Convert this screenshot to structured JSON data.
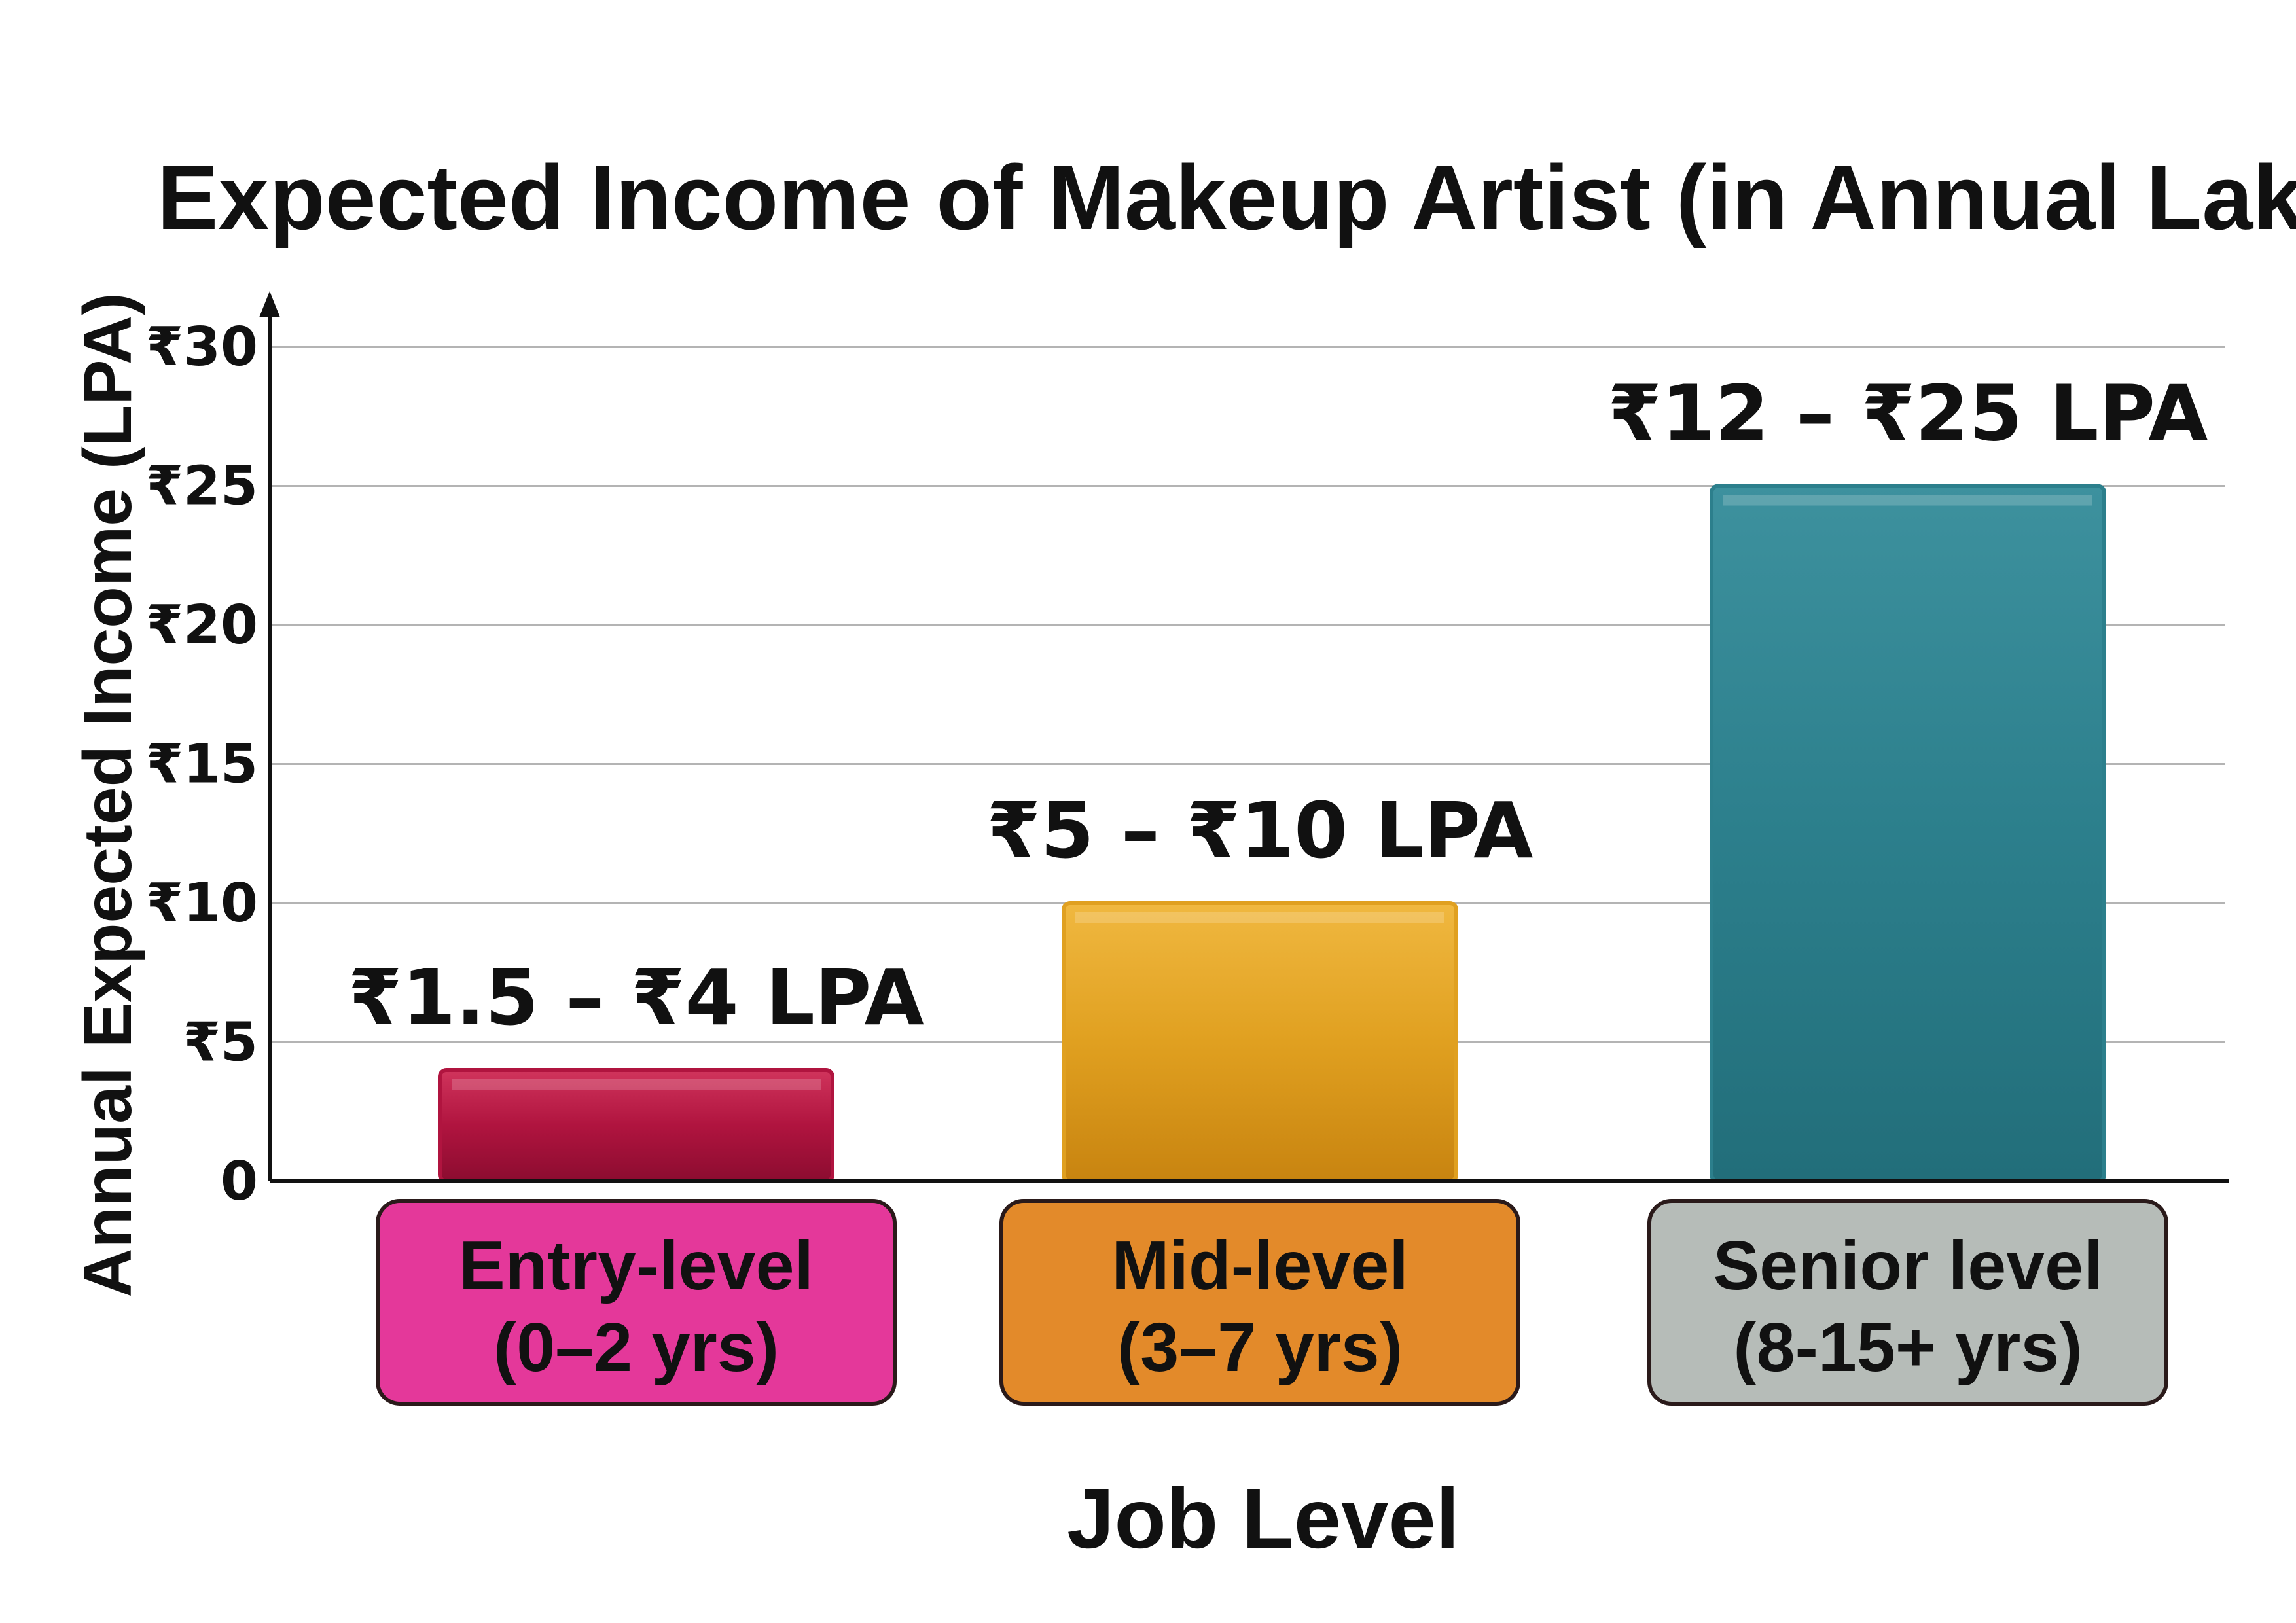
{
  "chart_data": {
    "type": "bar",
    "title": "Expected Income of Makeup Artist (in Annual Lakhs)",
    "xlabel": "Job Level",
    "ylabel": "Annual Expected Income (LPA)",
    "ylim": [
      0,
      30
    ],
    "yticks": [
      0,
      5,
      10,
      15,
      20,
      25,
      30
    ],
    "ytick_labels": [
      "0",
      "₹5",
      "₹10",
      "₹15",
      "₹20",
      "₹25",
      "₹30"
    ],
    "grid": true,
    "categories": [
      {
        "line1": "Entry-level",
        "line2": "(0–2 yrs)"
      },
      {
        "line1": "Mid-level",
        "line2": "(3–7 yrs)"
      },
      {
        "line1": "Senior level",
        "line2": "(8-15+ yrs)"
      }
    ],
    "values": [
      4,
      10,
      25
    ],
    "data_labels": [
      "₹1.5 – ₹4 LPA",
      "₹5 – ₹10 LPA",
      "₹12 – ₹25 LPA"
    ],
    "bar_colors": [
      "#b0143f",
      "#e0a020",
      "#2c7f8c"
    ],
    "category_box_colors": [
      "#e4389a",
      "#e38a2a",
      "#b6bcb8"
    ]
  }
}
